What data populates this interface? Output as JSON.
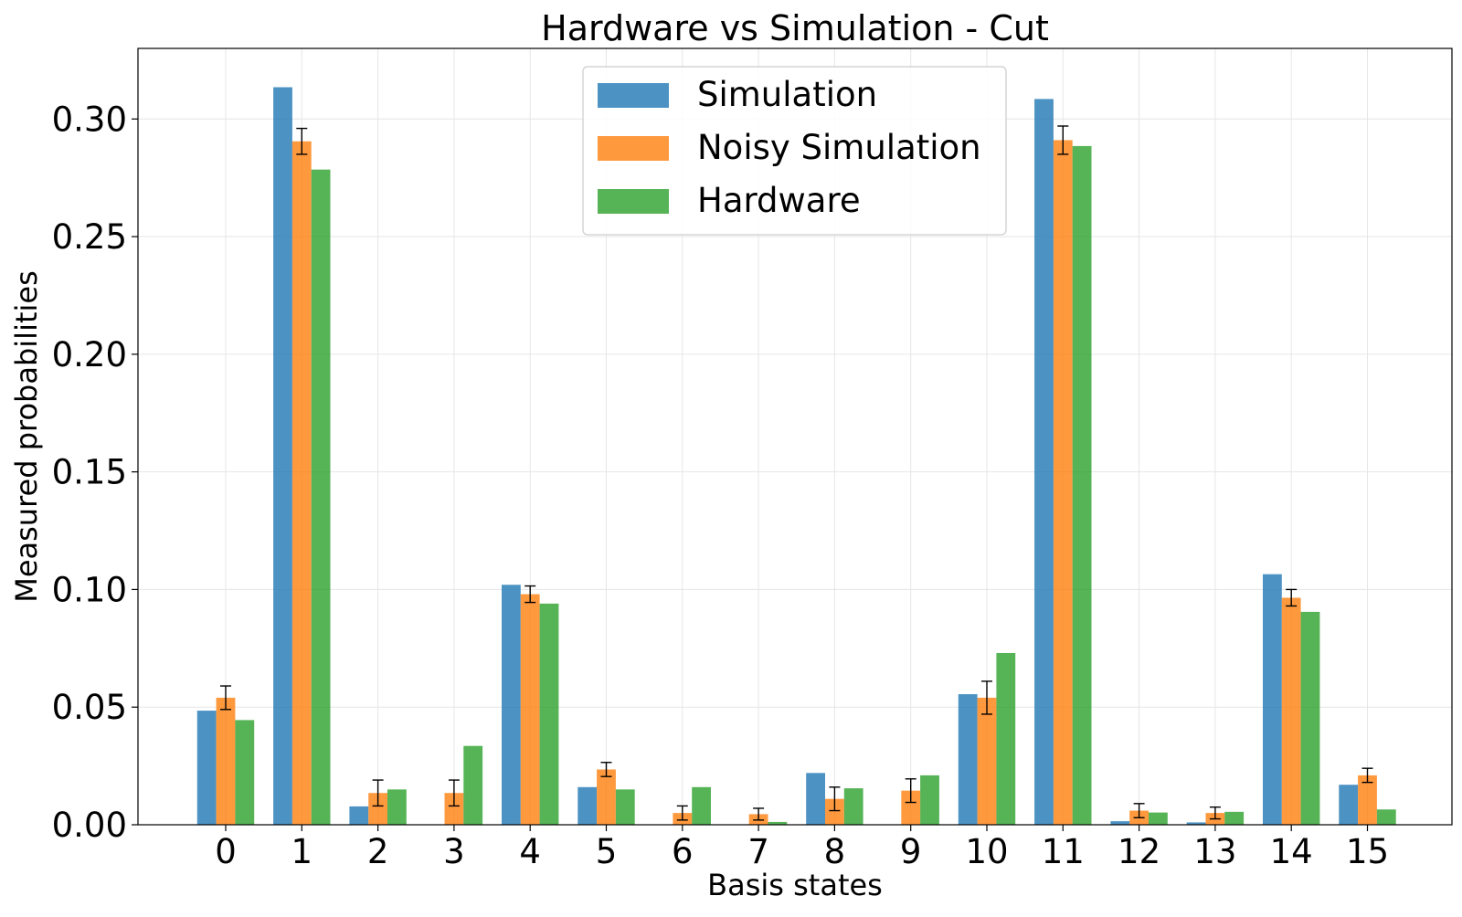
{
  "chart_data": {
    "type": "bar",
    "title": "Hardware vs Simulation - Cut",
    "xlabel": "Basis states",
    "ylabel": "Measured probabilities",
    "ylim": [
      0,
      0.33
    ],
    "yticks": [
      0.0,
      0.05,
      0.1,
      0.15,
      0.2,
      0.25,
      0.3
    ],
    "ytick_labels": [
      "0.00",
      "0.05",
      "0.10",
      "0.15",
      "0.20",
      "0.25",
      "0.30"
    ],
    "grid": true,
    "legend_position": "top-center",
    "categories": [
      "0",
      "1",
      "2",
      "3",
      "4",
      "5",
      "6",
      "7",
      "8",
      "9",
      "10",
      "11",
      "12",
      "13",
      "14",
      "15"
    ],
    "series": [
      {
        "name": "Simulation",
        "color": "#1f77b4",
        "values": [
          0.0485,
          0.3135,
          0.0078,
          0.0,
          0.102,
          0.016,
          0.0,
          0.0,
          0.022,
          0.0,
          0.0555,
          0.3085,
          0.0015,
          0.001,
          0.1065,
          0.017
        ]
      },
      {
        "name": "Noisy Simulation",
        "color": "#ff7f0e",
        "values": [
          0.054,
          0.2905,
          0.0135,
          0.0135,
          0.098,
          0.0235,
          0.005,
          0.0045,
          0.011,
          0.0145,
          0.054,
          0.291,
          0.006,
          0.005,
          0.0965,
          0.021
        ],
        "errors": [
          0.005,
          0.0055,
          0.0055,
          0.0055,
          0.0035,
          0.003,
          0.003,
          0.0025,
          0.005,
          0.005,
          0.007,
          0.006,
          0.003,
          0.0025,
          0.0035,
          0.003
        ]
      },
      {
        "name": "Hardware",
        "color": "#2ca02c",
        "values": [
          0.0445,
          0.2785,
          0.015,
          0.0335,
          0.094,
          0.015,
          0.016,
          0.0012,
          0.0155,
          0.021,
          0.073,
          0.2885,
          0.0052,
          0.0055,
          0.0905,
          0.0065
        ]
      }
    ]
  }
}
